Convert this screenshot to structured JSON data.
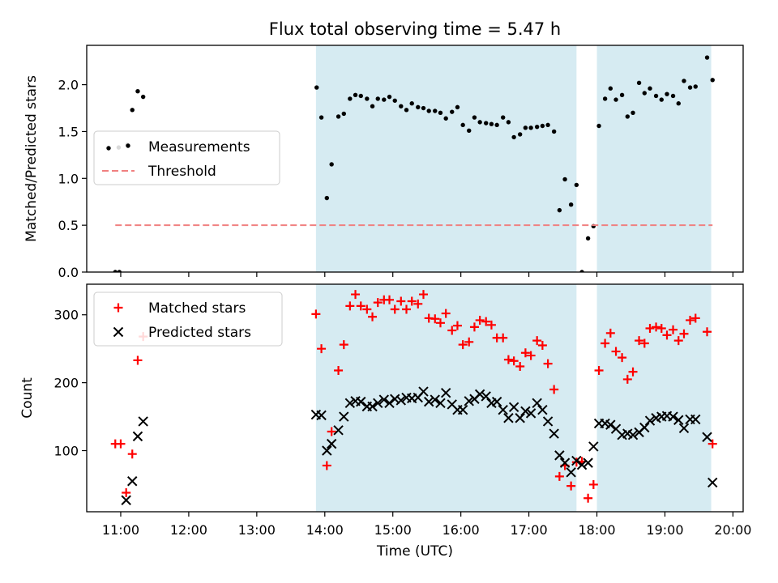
{
  "figure": {
    "title": "Flux total observing time = 5.47 h"
  },
  "chart_data": [
    {
      "type": "scatter",
      "ylabel": "Matched/Predicted stars",
      "xlabel": "",
      "xlim": [
        10.5,
        20.15
      ],
      "ylim": [
        0,
        2.42
      ],
      "yticks": [
        0.0,
        0.5,
        1.0,
        1.5,
        2.0
      ],
      "shaded_intervals": [
        [
          13.87,
          17.7
        ],
        [
          18.0,
          19.68
        ]
      ],
      "shade_color": "#add8e6",
      "legend_location": "center-left",
      "series": [
        {
          "name": "Measurements",
          "marker": "dot",
          "color": "#000000",
          "points": [
            [
              10.92,
              0.0
            ],
            [
              10.98,
              0.0
            ],
            [
              10.97,
              1.33
            ],
            [
              11.1,
              1.36
            ],
            [
              11.17,
              1.73
            ],
            [
              11.25,
              1.93
            ],
            [
              11.33,
              1.87
            ],
            [
              13.88,
              1.97
            ],
            [
              13.95,
              1.65
            ],
            [
              14.03,
              0.79
            ],
            [
              14.1,
              1.15
            ],
            [
              14.2,
              1.66
            ],
            [
              14.28,
              1.69
            ],
            [
              14.37,
              1.85
            ],
            [
              14.45,
              1.89
            ],
            [
              14.53,
              1.88
            ],
            [
              14.62,
              1.85
            ],
            [
              14.7,
              1.77
            ],
            [
              14.78,
              1.85
            ],
            [
              14.87,
              1.84
            ],
            [
              14.95,
              1.87
            ],
            [
              15.03,
              1.83
            ],
            [
              15.12,
              1.77
            ],
            [
              15.2,
              1.73
            ],
            [
              15.28,
              1.8
            ],
            [
              15.37,
              1.76
            ],
            [
              15.45,
              1.75
            ],
            [
              15.53,
              1.72
            ],
            [
              15.62,
              1.72
            ],
            [
              15.7,
              1.7
            ],
            [
              15.78,
              1.64
            ],
            [
              15.87,
              1.71
            ],
            [
              15.95,
              1.76
            ],
            [
              16.03,
              1.57
            ],
            [
              16.12,
              1.51
            ],
            [
              16.2,
              1.65
            ],
            [
              16.28,
              1.6
            ],
            [
              16.37,
              1.59
            ],
            [
              16.45,
              1.58
            ],
            [
              16.53,
              1.57
            ],
            [
              16.62,
              1.65
            ],
            [
              16.7,
              1.6
            ],
            [
              16.78,
              1.44
            ],
            [
              16.87,
              1.47
            ],
            [
              16.95,
              1.54
            ],
            [
              17.03,
              1.54
            ],
            [
              17.12,
              1.55
            ],
            [
              17.2,
              1.56
            ],
            [
              17.28,
              1.57
            ],
            [
              17.37,
              1.5
            ],
            [
              17.45,
              0.66
            ],
            [
              17.53,
              0.99
            ],
            [
              17.62,
              0.72
            ],
            [
              17.7,
              0.93
            ],
            [
              17.78,
              0.0
            ],
            [
              17.87,
              0.36
            ],
            [
              17.95,
              0.49
            ],
            [
              18.03,
              1.56
            ],
            [
              18.12,
              1.85
            ],
            [
              18.2,
              1.96
            ],
            [
              18.28,
              1.84
            ],
            [
              18.37,
              1.89
            ],
            [
              18.45,
              1.66
            ],
            [
              18.53,
              1.7
            ],
            [
              18.62,
              2.02
            ],
            [
              18.7,
              1.91
            ],
            [
              18.78,
              1.96
            ],
            [
              18.87,
              1.88
            ],
            [
              18.95,
              1.84
            ],
            [
              19.03,
              1.9
            ],
            [
              19.12,
              1.88
            ],
            [
              19.2,
              1.8
            ],
            [
              19.28,
              2.04
            ],
            [
              19.37,
              1.97
            ],
            [
              19.45,
              1.98
            ],
            [
              19.62,
              2.29
            ],
            [
              19.7,
              2.05
            ]
          ]
        },
        {
          "name": "Threshold",
          "marker": "dashed-line",
          "color": "#f08080",
          "points": [
            [
              10.92,
              0.5
            ],
            [
              19.7,
              0.5
            ]
          ]
        }
      ]
    },
    {
      "type": "scatter",
      "ylabel": "Count",
      "xlabel": "Time (UTC)",
      "xlim": [
        10.5,
        20.15
      ],
      "ylim": [
        10,
        345
      ],
      "yticks": [
        100,
        200,
        300
      ],
      "xticks": [
        11,
        12,
        13,
        14,
        15,
        16,
        17,
        18,
        19,
        20
      ],
      "xtick_labels": [
        "11:00",
        "12:00",
        "13:00",
        "14:00",
        "15:00",
        "16:00",
        "17:00",
        "18:00",
        "19:00",
        "20:00"
      ],
      "shaded_intervals": [
        [
          13.87,
          17.7
        ],
        [
          18.0,
          19.68
        ]
      ],
      "shade_color": "#add8e6",
      "legend_location": "top-left",
      "series": [
        {
          "name": "Matched stars",
          "marker": "plus",
          "color": "#ff0000",
          "points": [
            [
              10.92,
              110
            ],
            [
              11.0,
              110
            ],
            [
              11.08,
              38
            ],
            [
              11.17,
              95
            ],
            [
              11.25,
              233
            ],
            [
              11.33,
              268
            ],
            [
              13.87,
              301
            ],
            [
              13.95,
              250
            ],
            [
              14.03,
              78
            ],
            [
              14.1,
              128
            ],
            [
              14.2,
              218
            ],
            [
              14.28,
              256
            ],
            [
              14.37,
              313
            ],
            [
              14.45,
              330
            ],
            [
              14.53,
              313
            ],
            [
              14.62,
              308
            ],
            [
              14.7,
              297
            ],
            [
              14.78,
              318
            ],
            [
              14.87,
              322
            ],
            [
              14.95,
              322
            ],
            [
              15.03,
              308
            ],
            [
              15.12,
              320
            ],
            [
              15.2,
              308
            ],
            [
              15.28,
              320
            ],
            [
              15.37,
              316
            ],
            [
              15.45,
              330
            ],
            [
              15.53,
              295
            ],
            [
              15.62,
              294
            ],
            [
              15.7,
              288
            ],
            [
              15.78,
              302
            ],
            [
              15.87,
              277
            ],
            [
              15.95,
              284
            ],
            [
              16.03,
              256
            ],
            [
              16.12,
              260
            ],
            [
              16.2,
              282
            ],
            [
              16.28,
              292
            ],
            [
              16.37,
              290
            ],
            [
              16.45,
              285
            ],
            [
              16.53,
              266
            ],
            [
              16.62,
              266
            ],
            [
              16.7,
              234
            ],
            [
              16.78,
              232
            ],
            [
              16.87,
              224
            ],
            [
              16.95,
              244
            ],
            [
              17.03,
              240
            ],
            [
              17.12,
              262
            ],
            [
              17.2,
              255
            ],
            [
              17.28,
              228
            ],
            [
              17.37,
              190
            ],
            [
              17.45,
              62
            ],
            [
              17.53,
              78
            ],
            [
              17.62,
              48
            ],
            [
              17.7,
              83
            ],
            [
              17.78,
              84
            ],
            [
              17.87,
              30
            ],
            [
              17.95,
              50
            ],
            [
              18.03,
              218
            ],
            [
              18.12,
              258
            ],
            [
              18.2,
              273
            ],
            [
              18.28,
              246
            ],
            [
              18.37,
              237
            ],
            [
              18.45,
              205
            ],
            [
              18.53,
              216
            ],
            [
              18.62,
              262
            ],
            [
              18.7,
              258
            ],
            [
              18.78,
              280
            ],
            [
              18.87,
              282
            ],
            [
              18.95,
              280
            ],
            [
              19.03,
              270
            ],
            [
              19.12,
              278
            ],
            [
              19.2,
              262
            ],
            [
              19.28,
              272
            ],
            [
              19.37,
              292
            ],
            [
              19.45,
              295
            ],
            [
              19.62,
              275
            ],
            [
              19.7,
              110
            ]
          ]
        },
        {
          "name": "Predicted stars",
          "marker": "x",
          "color": "#000000",
          "points": [
            [
              11.08,
              27
            ],
            [
              11.17,
              55
            ],
            [
              11.25,
              121
            ],
            [
              11.33,
              143
            ],
            [
              13.87,
              153
            ],
            [
              13.95,
              152
            ],
            [
              14.03,
              100
            ],
            [
              14.1,
              110
            ],
            [
              14.2,
              130
            ],
            [
              14.28,
              150
            ],
            [
              14.37,
              170
            ],
            [
              14.45,
              173
            ],
            [
              14.53,
              172
            ],
            [
              14.62,
              165
            ],
            [
              14.7,
              165
            ],
            [
              14.78,
              170
            ],
            [
              14.87,
              175
            ],
            [
              14.95,
              170
            ],
            [
              15.03,
              176
            ],
            [
              15.12,
              174
            ],
            [
              15.2,
              178
            ],
            [
              15.28,
              177
            ],
            [
              15.37,
              178
            ],
            [
              15.45,
              187
            ],
            [
              15.53,
              172
            ],
            [
              15.62,
              175
            ],
            [
              15.7,
              170
            ],
            [
              15.78,
              185
            ],
            [
              15.87,
              168
            ],
            [
              15.95,
              160
            ],
            [
              16.03,
              160
            ],
            [
              16.12,
              173
            ],
            [
              16.2,
              176
            ],
            [
              16.28,
              183
            ],
            [
              16.37,
              180
            ],
            [
              16.45,
              170
            ],
            [
              16.53,
              172
            ],
            [
              16.62,
              160
            ],
            [
              16.7,
              148
            ],
            [
              16.78,
              164
            ],
            [
              16.87,
              148
            ],
            [
              16.95,
              158
            ],
            [
              17.03,
              155
            ],
            [
              17.12,
              170
            ],
            [
              17.2,
              160
            ],
            [
              17.28,
              143
            ],
            [
              17.37,
              125
            ],
            [
              17.45,
              93
            ],
            [
              17.53,
              82
            ],
            [
              17.62,
              68
            ],
            [
              17.7,
              85
            ],
            [
              17.78,
              79
            ],
            [
              17.87,
              82
            ],
            [
              17.95,
              106
            ],
            [
              18.03,
              140
            ],
            [
              18.12,
              140
            ],
            [
              18.2,
              138
            ],
            [
              18.28,
              132
            ],
            [
              18.37,
              123
            ],
            [
              18.45,
              125
            ],
            [
              18.53,
              123
            ],
            [
              18.62,
              127
            ],
            [
              18.7,
              134
            ],
            [
              18.78,
              144
            ],
            [
              18.87,
              148
            ],
            [
              18.95,
              150
            ],
            [
              19.03,
              151
            ],
            [
              19.12,
              150
            ],
            [
              19.2,
              145
            ],
            [
              19.28,
              133
            ],
            [
              19.37,
              146
            ],
            [
              19.45,
              146
            ],
            [
              19.62,
              120
            ],
            [
              19.7,
              53
            ]
          ]
        }
      ]
    }
  ]
}
